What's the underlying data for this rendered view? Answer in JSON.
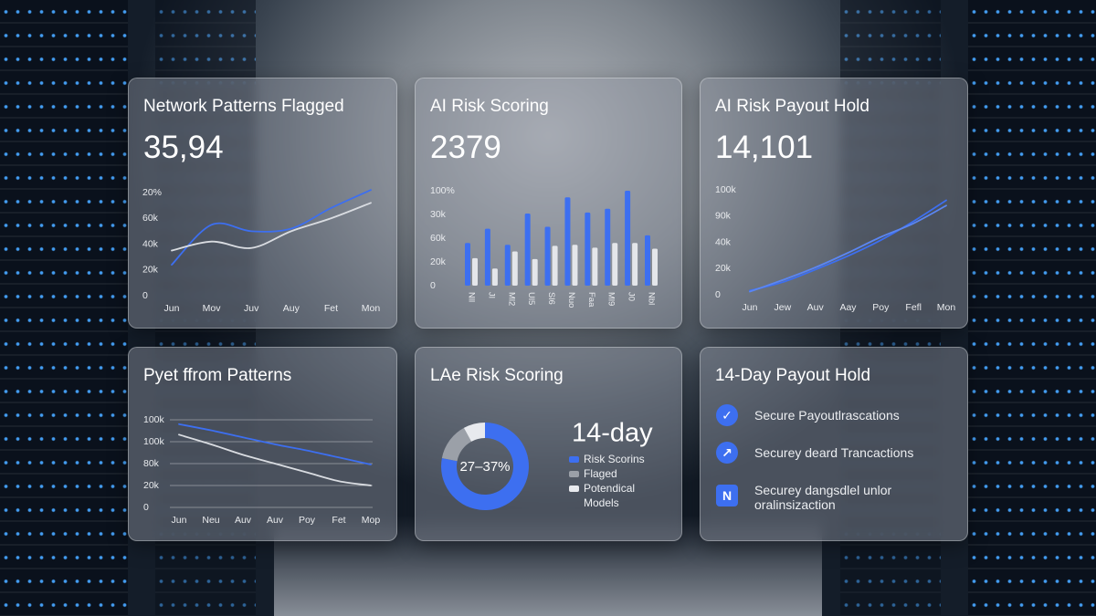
{
  "chart_data": [
    {
      "type": "line",
      "title": "Network Patterns Flagged",
      "headline": "35,94",
      "categories": [
        "Jun",
        "Mov",
        "Juv",
        "Auy",
        "Fet",
        "Mon"
      ],
      "series": [
        {
          "color": "#3d6ff0",
          "values": [
            24,
            55,
            50,
            52,
            68,
            82
          ]
        },
        {
          "color": "#d9dce1",
          "values": [
            35,
            42,
            37,
            50,
            60,
            72
          ]
        }
      ],
      "ylim": [
        0,
        80
      ],
      "yticks": [
        0,
        {
          "value": 20,
          "label": "20k"
        },
        {
          "value": 40,
          "label": "40k"
        },
        {
          "value": 60,
          "label": "60k"
        },
        {
          "value": 80,
          "label": "20%"
        }
      ],
      "grid": false
    },
    {
      "type": "bar",
      "title": "AI Risk Scoring",
      "headline": "2379",
      "categories": [
        "Nll",
        "Jl",
        "Ml2",
        "Ul5",
        "Sl6",
        "Nuo",
        "Faa",
        "Ml9",
        "J0",
        "Nbl"
      ],
      "series": [
        {
          "color": "#3d6ff0",
          "values": [
            45,
            60,
            43,
            76,
            62,
            93,
            77,
            81,
            100,
            53
          ]
        },
        {
          "color": "#e4e6ea",
          "values": [
            29,
            18,
            36,
            28,
            42,
            43,
            40,
            45,
            45,
            39
          ]
        }
      ],
      "ylim": [
        0,
        100
      ],
      "yticks": [
        0,
        {
          "value": 25,
          "label": "20k"
        },
        {
          "value": 50,
          "label": "60k"
        },
        {
          "value": 75,
          "label": "30k"
        },
        {
          "value": 100,
          "label": "100%"
        }
      ],
      "grid": false
    },
    {
      "type": "line",
      "title": "AI Risk Payout Hold",
      "headline": "14,101",
      "categories": [
        "Jun",
        "Jew",
        "Auv",
        "Aay",
        "Poy",
        "Fefl",
        "Mon"
      ],
      "series": [
        {
          "color": "#3d6ff0",
          "values": [
            4,
            12,
            24,
            37,
            52,
            70,
            90
          ]
        },
        {
          "color": "#5b86f2",
          "values": [
            3,
            14,
            26,
            40,
            55,
            68,
            85
          ]
        }
      ],
      "ylim": [
        0,
        100
      ],
      "yticks": [
        0,
        {
          "value": 25,
          "label": "20k"
        },
        {
          "value": 50,
          "label": "40k"
        },
        {
          "value": 75,
          "label": "90k"
        },
        {
          "value": 100,
          "label": "100k"
        }
      ],
      "grid": false
    },
    {
      "type": "line",
      "title": "Pyet ffrom Patterns",
      "categories": [
        "Jun",
        "Neu",
        "Auv",
        "Auv",
        "Poy",
        "Fet",
        "Mop"
      ],
      "series": [
        {
          "color": "#3d6ff0",
          "values": [
            95,
            88,
            80,
            72,
            65,
            57,
            49
          ]
        },
        {
          "color": "#d9dce1",
          "values": [
            83,
            72,
            60,
            50,
            40,
            30,
            25
          ]
        }
      ],
      "ylim": [
        0,
        100
      ],
      "yticks": [
        0,
        {
          "value": 25,
          "label": "20k"
        },
        {
          "value": 50,
          "label": "80k"
        },
        {
          "value": 75,
          "label": "100k"
        },
        {
          "value": 100,
          "label": "100k"
        }
      ],
      "grid": true
    },
    {
      "type": "pie",
      "title": "LAe Risk Scoring",
      "headline": "14-day",
      "center_label": "27–37%",
      "categories": [
        "Risk Scorins",
        "Flaged",
        "Potendical Models"
      ],
      "values": [
        78,
        14,
        8
      ],
      "colors": [
        "#3d6ff0",
        "#9ba0a8",
        "#e8eaee"
      ]
    }
  ],
  "checklist": {
    "title": "14-Day Payout Hold",
    "items": [
      "Secure Payoutlrascations",
      "Securey deard Trancactions",
      "Securey dangsdlel unlor oralinsizaction"
    ]
  }
}
